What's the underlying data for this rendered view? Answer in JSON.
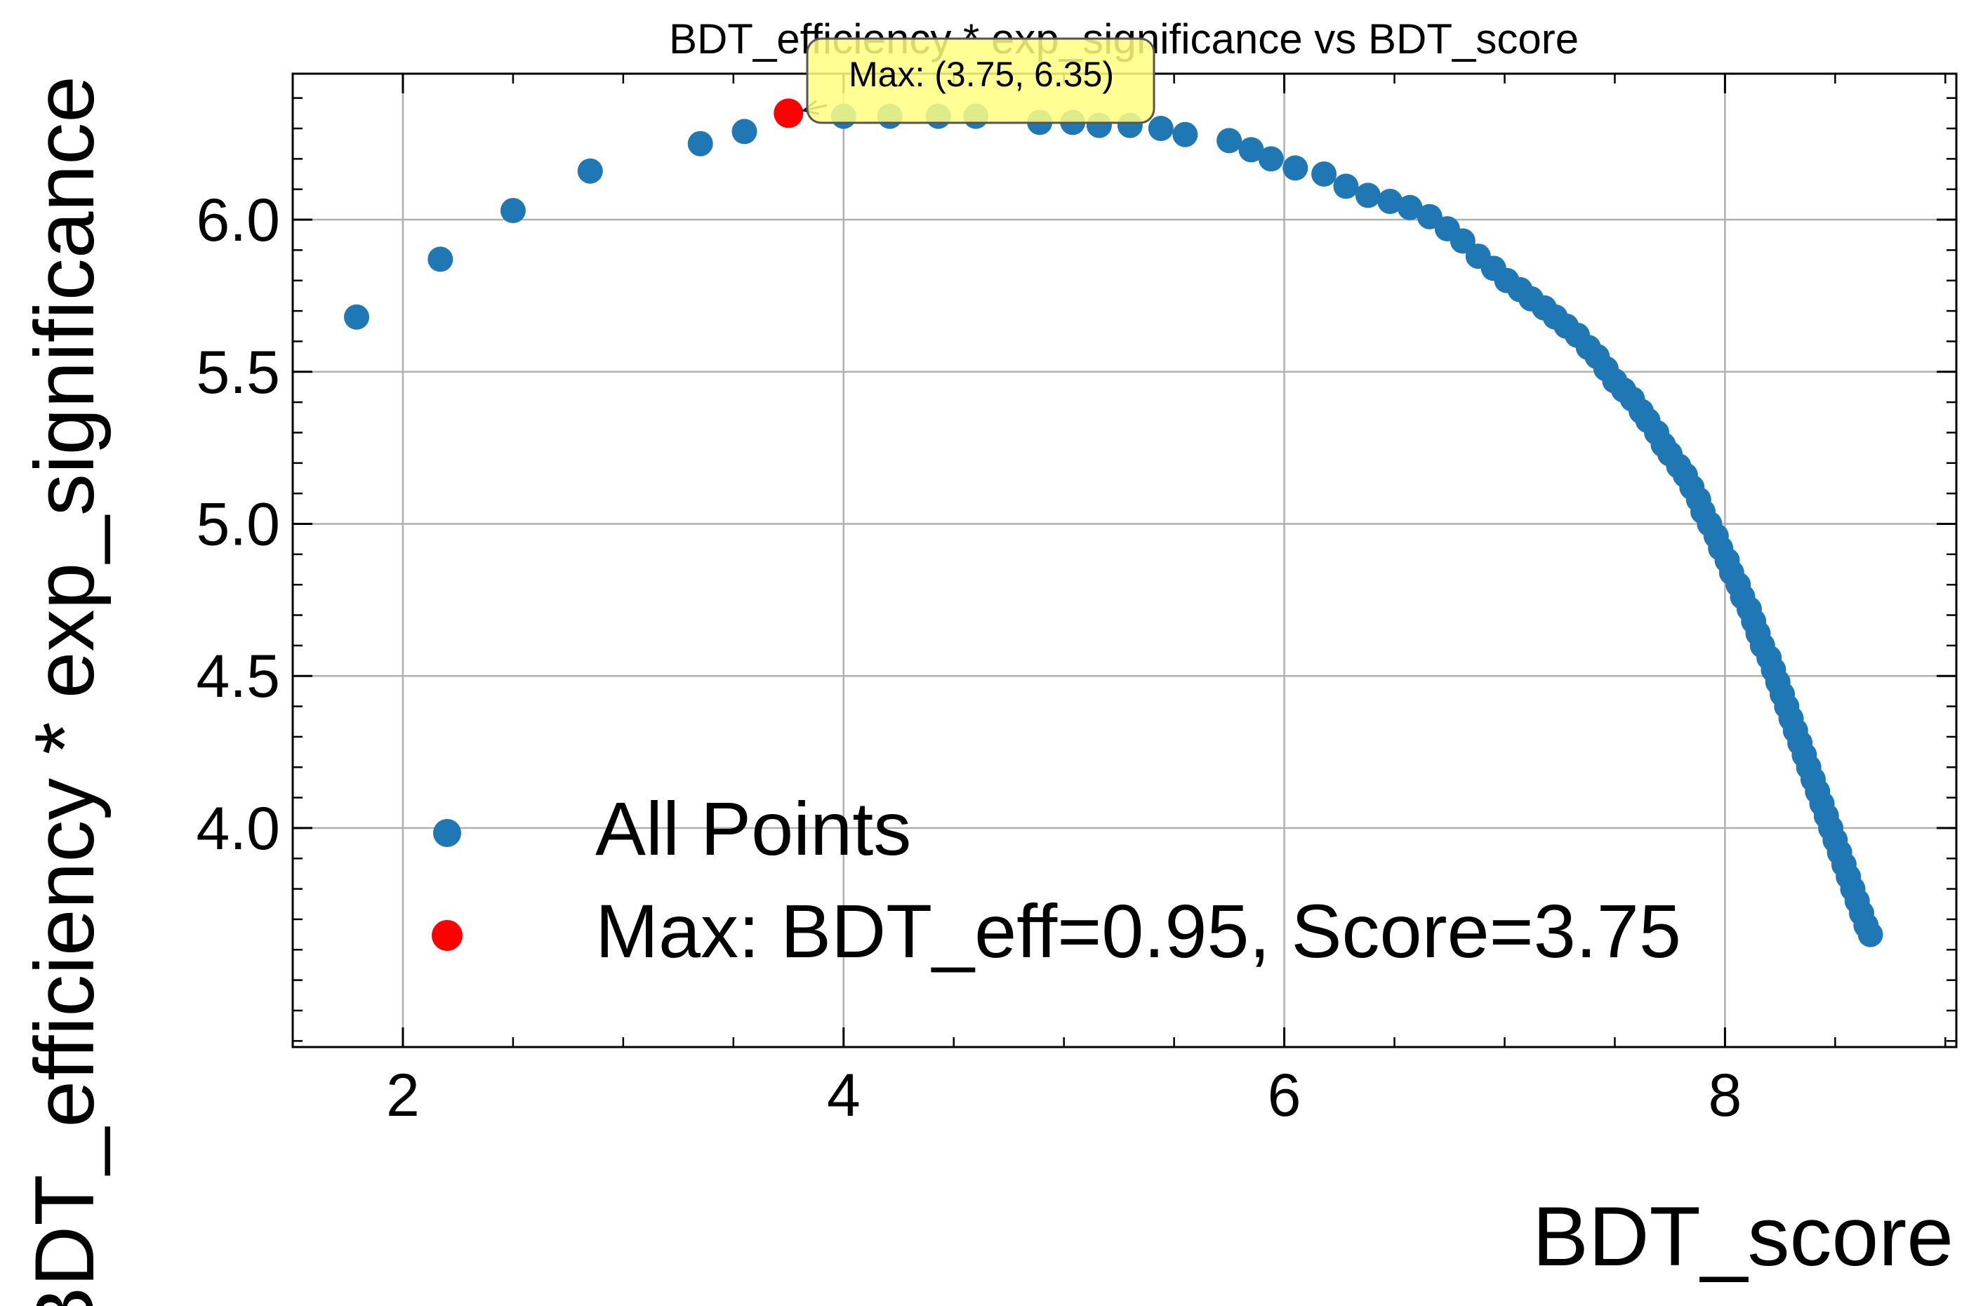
{
  "chart_data": {
    "type": "scatter",
    "title": "BDT_efficiency * exp_significance vs BDT_score",
    "xlabel": "BDT_score",
    "ylabel": "BDT_efficiency * exp_significance",
    "xlim": [
      1.5,
      9.05
    ],
    "ylim": [
      3.28,
      6.48
    ],
    "xticks": [
      2,
      4,
      6,
      8
    ],
    "xtick_labels": [
      "2",
      "4",
      "6",
      "8"
    ],
    "yticks": [
      4.0,
      4.5,
      5.0,
      5.5,
      6.0
    ],
    "ytick_labels": [
      "4.0",
      "4.5",
      "5.0",
      "5.5",
      "6.0"
    ],
    "grid": true,
    "legend_position": "lower-left",
    "series": [
      {
        "name": "All Points",
        "color": "#1f77b4",
        "points": [
          [
            1.79,
            5.68
          ],
          [
            2.17,
            5.87
          ],
          [
            2.5,
            6.03
          ],
          [
            2.85,
            6.16
          ],
          [
            3.35,
            6.25
          ],
          [
            3.55,
            6.29
          ],
          [
            4.0,
            6.34
          ],
          [
            4.21,
            6.34
          ],
          [
            4.43,
            6.34
          ],
          [
            4.6,
            6.34
          ],
          [
            4.89,
            6.32
          ],
          [
            5.04,
            6.32
          ],
          [
            5.16,
            6.31
          ],
          [
            5.3,
            6.31
          ],
          [
            5.44,
            6.3
          ],
          [
            5.55,
            6.28
          ],
          [
            5.75,
            6.26
          ],
          [
            5.85,
            6.23
          ],
          [
            5.94,
            6.2
          ],
          [
            6.05,
            6.17
          ],
          [
            6.18,
            6.15
          ],
          [
            6.28,
            6.11
          ],
          [
            6.38,
            6.08
          ],
          [
            6.48,
            6.06
          ],
          [
            6.57,
            6.04
          ],
          [
            6.66,
            6.01
          ],
          [
            6.74,
            5.97
          ],
          [
            6.81,
            5.93
          ],
          [
            6.88,
            5.88
          ],
          [
            6.95,
            5.84
          ],
          [
            7.01,
            5.8
          ],
          [
            7.07,
            5.77
          ],
          [
            7.12,
            5.74
          ],
          [
            7.18,
            5.71
          ],
          [
            7.23,
            5.68
          ],
          [
            7.28,
            5.65
          ],
          [
            7.33,
            5.62
          ],
          [
            7.38,
            5.58
          ],
          [
            7.42,
            5.55
          ],
          [
            7.46,
            5.51
          ],
          [
            7.5,
            5.47
          ],
          [
            7.54,
            5.44
          ],
          [
            7.58,
            5.41
          ],
          [
            7.62,
            5.37
          ],
          [
            7.65,
            5.34
          ],
          [
            7.69,
            5.3
          ],
          [
            7.72,
            5.26
          ],
          [
            7.75,
            5.23
          ],
          [
            7.79,
            5.19
          ],
          [
            7.82,
            5.16
          ],
          [
            7.85,
            5.12
          ],
          [
            7.88,
            5.08
          ],
          [
            7.9,
            5.04
          ],
          [
            7.93,
            5.0
          ],
          [
            7.96,
            4.96
          ],
          [
            7.98,
            4.92
          ],
          [
            8.01,
            4.88
          ],
          [
            8.03,
            4.84
          ],
          [
            8.06,
            4.8
          ],
          [
            8.08,
            4.76
          ],
          [
            8.11,
            4.72
          ],
          [
            8.13,
            4.68
          ],
          [
            8.15,
            4.64
          ],
          [
            8.17,
            4.6
          ],
          [
            8.2,
            4.56
          ],
          [
            8.22,
            4.52
          ],
          [
            8.24,
            4.48
          ],
          [
            8.26,
            4.44
          ],
          [
            8.28,
            4.4
          ],
          [
            8.3,
            4.36
          ],
          [
            8.32,
            4.32
          ],
          [
            8.34,
            4.28
          ],
          [
            8.36,
            4.24
          ],
          [
            8.38,
            4.2
          ],
          [
            8.4,
            4.16
          ],
          [
            8.42,
            4.12
          ],
          [
            8.44,
            4.08
          ],
          [
            8.46,
            4.04
          ],
          [
            8.48,
            4.0
          ],
          [
            8.5,
            3.96
          ],
          [
            8.52,
            3.92
          ],
          [
            8.54,
            3.88
          ],
          [
            8.56,
            3.84
          ],
          [
            8.58,
            3.8
          ],
          [
            8.6,
            3.76
          ],
          [
            8.62,
            3.72
          ],
          [
            8.64,
            3.68
          ],
          [
            8.66,
            3.65
          ]
        ]
      },
      {
        "name": "Max: BDT_eff=0.95, Score=3.75",
        "color": "#ff0000",
        "points": [
          [
            3.75,
            6.35
          ]
        ]
      }
    ],
    "annotation": {
      "text": "Max: (3.75, 6.35)",
      "xy": [
        3.75,
        6.35
      ],
      "box_color": "#ffff80"
    }
  }
}
